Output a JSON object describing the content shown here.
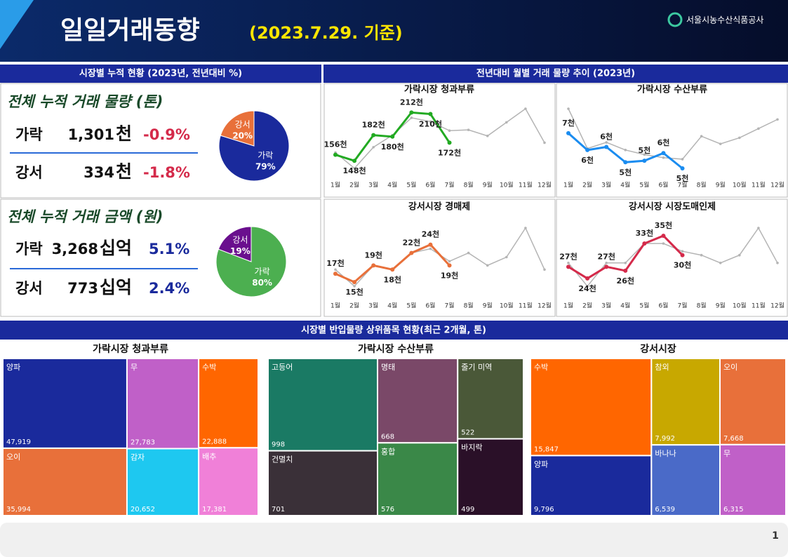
{
  "header": {
    "title": "일일거래동향",
    "date": "(2023.7.29. 기준)",
    "org": "서울시농수산식품공사"
  },
  "left_section": {
    "title": "시장별 누적 현황 (2023년, 전년대비 %)",
    "volume": {
      "title": "전체 누적 거래 물량 (톤)",
      "rows": [
        {
          "market": "가락",
          "amount": "1,301",
          "unit": "천",
          "change": "-0.9%"
        },
        {
          "market": "강서",
          "amount": "334",
          "unit": "천",
          "change": "-1.8%"
        }
      ]
    },
    "value": {
      "title": "전체 누적 거래 금액 (원)",
      "rows": [
        {
          "market": "가락",
          "amount": "3,268",
          "unit": "십억",
          "change": "5.1%"
        },
        {
          "market": "강서",
          "amount": "773",
          "unit": "십억",
          "change": "2.4%"
        }
      ]
    }
  },
  "right_section": {
    "title": "전년대비 월별 거래 물량 추이 (2023년)"
  },
  "bottom_section": {
    "title": "시장별 반입물량 상위품목 현황(최근 2개월, 톤)"
  },
  "page_number": "1",
  "chart_data": [
    {
      "type": "pie",
      "categories": [
        "가락",
        "강서"
      ],
      "values": [
        79,
        20
      ],
      "value_labels": [
        "79%",
        "20%"
      ],
      "colors": [
        "#1a2a9c",
        "#e8703a"
      ]
    },
    {
      "type": "pie",
      "categories": [
        "가락",
        "강서"
      ],
      "values": [
        80,
        19
      ],
      "value_labels": [
        "80%",
        "19%"
      ],
      "colors": [
        "#4caf50",
        "#6a0f8e"
      ]
    },
    {
      "type": "line",
      "title": "가락시장 청과부류",
      "categories": [
        "1월",
        "2월",
        "3월",
        "4월",
        "5월",
        "6월",
        "7월",
        "8월",
        "9월",
        "10월",
        "11월",
        "12월"
      ],
      "series": [
        {
          "color": "#b4b4b4",
          "values": [
            159,
            138,
            166,
            182,
            205,
            200,
            188,
            189,
            181,
            199,
            217,
            172
          ]
        },
        {
          "color": "#22aa22",
          "values": [
            156,
            148,
            182,
            180,
            212,
            210,
            172,
            null,
            null,
            null,
            null,
            null
          ],
          "value_labels": [
            "156천",
            "148천",
            "182천",
            "180천",
            "212천",
            "210천",
            "172천",
            null,
            null,
            null,
            null,
            null
          ]
        }
      ]
    },
    {
      "type": "line",
      "title": "가락시장 수산부류",
      "categories": [
        "1월",
        "2월",
        "3월",
        "4월",
        "5월",
        "6월",
        "7월",
        "8월",
        "9월",
        "10월",
        "11월",
        "12월"
      ],
      "series": [
        {
          "color": "#b4b4b4",
          "values": [
            8.8,
            6.2,
            6.6,
            6.1,
            5.8,
            5.6,
            5.5,
            7.0,
            6.5,
            6.9,
            7.5,
            8.1
          ]
        },
        {
          "color": "#1a8cf0",
          "values": [
            7.2,
            6.1,
            6.3,
            5.3,
            5.4,
            5.9,
            4.9,
            null,
            null,
            null,
            null,
            null
          ],
          "value_labels": [
            "7천",
            "6천",
            "6천",
            "5천",
            "5천",
            "6천",
            "5천",
            null,
            null,
            null,
            null,
            null
          ]
        }
      ]
    },
    {
      "type": "line",
      "title": "강서시장 경매제",
      "categories": [
        "1월",
        "2월",
        "3월",
        "4월",
        "5월",
        "6월",
        "7월",
        "8월",
        "9월",
        "10월",
        "11월",
        "12월"
      ],
      "series": [
        {
          "color": "#b4b4b4",
          "values": [
            18,
            14,
            19,
            18,
            22,
            23,
            20,
            22,
            19,
            21,
            28,
            18
          ]
        },
        {
          "color": "#e8703a",
          "values": [
            17,
            15,
            19,
            18,
            22,
            24,
            19,
            null,
            null,
            null,
            null,
            null
          ],
          "value_labels": [
            "17천",
            "15천",
            "19천",
            "18천",
            "22천",
            "24천",
            "19천",
            null,
            null,
            null,
            null,
            null
          ]
        }
      ]
    },
    {
      "type": "line",
      "title": "강서시장 시장도매인제",
      "categories": [
        "1월",
        "2월",
        "3월",
        "4월",
        "5월",
        "6월",
        "7월",
        "8월",
        "9월",
        "10월",
        "11월",
        "12월"
      ],
      "series": [
        {
          "color": "#b4b4b4",
          "values": [
            28,
            22,
            28,
            28,
            33,
            33,
            31,
            30,
            28,
            30,
            37,
            28
          ]
        },
        {
          "color": "#d42a4a",
          "values": [
            27,
            24,
            27,
            26,
            33,
            35,
            30,
            null,
            null,
            null,
            null,
            null
          ],
          "value_labels": [
            "27천",
            "24천",
            "27천",
            "26천",
            "33천",
            "35천",
            "30천",
            null,
            null,
            null,
            null,
            null
          ]
        }
      ]
    },
    {
      "type": "treemap",
      "title": "가락시장 청과부류",
      "categories": [
        "양파",
        "오이",
        "무",
        "감자",
        "수박",
        "배추"
      ],
      "values": [
        47919,
        35994,
        27783,
        20652,
        22888,
        17381
      ],
      "value_labels": [
        "47,919",
        "35,994",
        "27,783",
        "20,652",
        "22,888",
        "17,381"
      ],
      "colors": [
        "#1a2a9c",
        "#e8703a",
        "#c060c8",
        "#1ec8f0",
        "#ff6600",
        "#f080d8"
      ]
    },
    {
      "type": "treemap",
      "title": "가락시장 수산부류",
      "categories": [
        "고등어",
        "건멸치",
        "명태",
        "홍합",
        "줄기 미역",
        "바지락"
      ],
      "values": [
        998,
        701,
        668,
        576,
        522,
        499
      ],
      "value_labels": [
        "998",
        "701",
        "668",
        "576",
        "522",
        "499"
      ],
      "colors": [
        "#1a7a64",
        "#3a3038",
        "#7a4868",
        "#3a8848",
        "#4a5838",
        "#2a1028"
      ]
    },
    {
      "type": "treemap",
      "title": "강서시장",
      "categories": [
        "수박",
        "양파",
        "참외",
        "바나나",
        "오이",
        "무"
      ],
      "values": [
        15847,
        9796,
        7992,
        6539,
        7668,
        6315
      ],
      "value_labels": [
        "15,847",
        "9,796",
        "7,992",
        "6,539",
        "7,668",
        "6,315"
      ],
      "colors": [
        "#ff6600",
        "#1a2a9c",
        "#c8a800",
        "#4a6ac8",
        "#e8703a",
        "#c060c8"
      ]
    }
  ]
}
